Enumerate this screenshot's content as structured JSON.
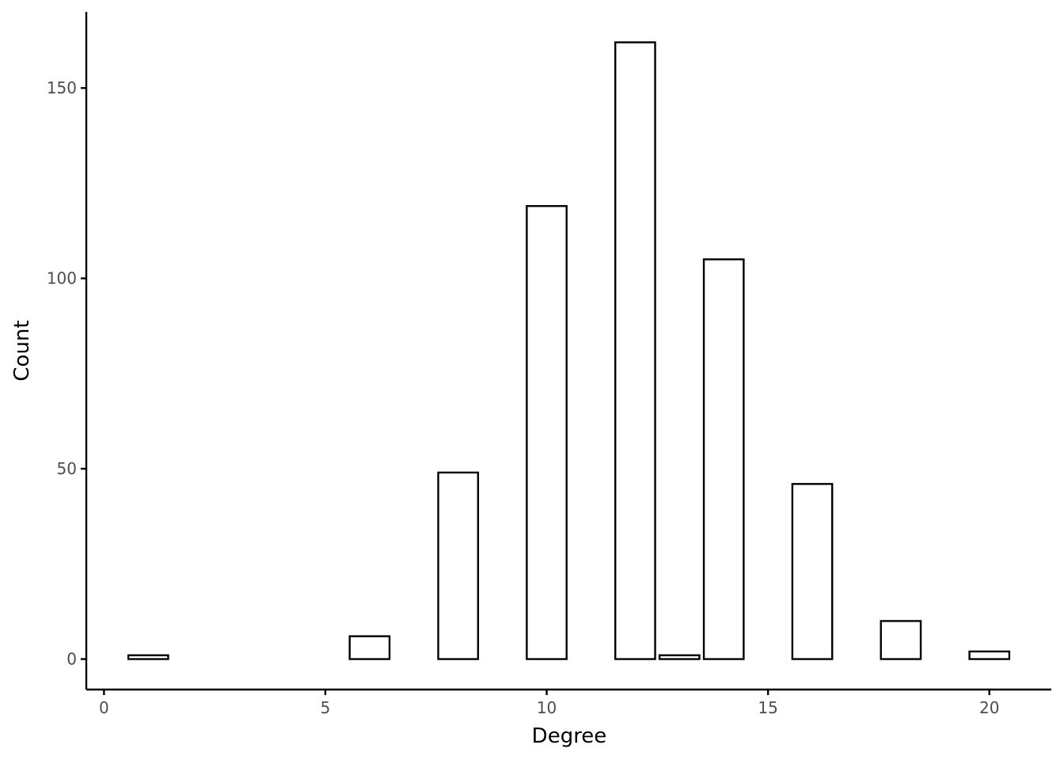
{
  "chart_data": {
    "type": "bar",
    "title": "",
    "xlabel": "Degree",
    "ylabel": "Count",
    "xlim": [
      -0.4,
      21.4
    ],
    "ylim": [
      -8,
      170
    ],
    "x_ticks": [
      0,
      5,
      10,
      15,
      20
    ],
    "y_ticks": [
      0,
      50,
      100,
      150
    ],
    "bar_width": 0.9,
    "x": [
      1,
      6,
      8,
      10,
      12,
      13,
      14,
      16,
      18,
      20
    ],
    "values": [
      1,
      6,
      49,
      119,
      162,
      1,
      105,
      46,
      10,
      2
    ],
    "grid": false,
    "legend": "none",
    "colors": {
      "bar_fill": "#ffffff",
      "bar_stroke": "#000000",
      "tick_label": "#4d4d4d"
    }
  }
}
